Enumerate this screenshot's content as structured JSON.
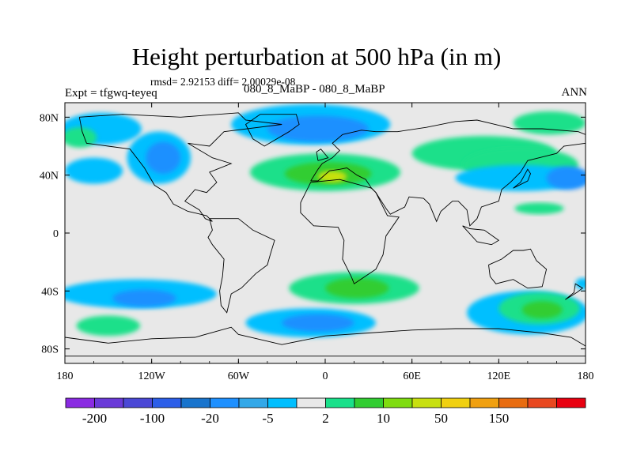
{
  "chart_data": {
    "type": "heatmap",
    "title": "Height perturbation at 500 hPa (in m)",
    "stats_text": "rmsd= 2.92153 diff= 2.00029e-08",
    "left_label": "Expt = tfgwq-teyeq",
    "center_label": "080_8_MaBP - 080_8_MaBP",
    "right_label": "ANN",
    "x_range": [
      -180,
      180
    ],
    "y_range": [
      -90,
      90
    ],
    "x_ticks": [
      {
        "value": -180,
        "label": "180"
      },
      {
        "value": -120,
        "label": "120W"
      },
      {
        "value": -60,
        "label": "60W"
      },
      {
        "value": 0,
        "label": "0"
      },
      {
        "value": 60,
        "label": "60E"
      },
      {
        "value": 120,
        "label": "120E"
      },
      {
        "value": 180,
        "label": "180"
      }
    ],
    "y_ticks": [
      {
        "value": 80,
        "label": "80N"
      },
      {
        "value": 40,
        "label": "40N"
      },
      {
        "value": 0,
        "label": "0"
      },
      {
        "value": -40,
        "label": "40S"
      },
      {
        "value": -80,
        "label": "80S"
      }
    ],
    "colorbar": {
      "colors": [
        "#8a2be2",
        "#6a3ad8",
        "#4b48d6",
        "#2c5ee8",
        "#1874cd",
        "#1e90ff",
        "#33a8e8",
        "#00bfff",
        "#e8e8e8",
        "#1ae08a",
        "#32cd32",
        "#7fdc10",
        "#c8e010",
        "#f0d010",
        "#f0a010",
        "#e86c10",
        "#e84820",
        "#e80010"
      ],
      "labels": [
        {
          "index": 1,
          "text": "-200"
        },
        {
          "index": 3,
          "text": "-100"
        },
        {
          "index": 5,
          "text": "-20"
        },
        {
          "index": 7,
          "text": "-5"
        },
        {
          "index": 9,
          "text": "2"
        },
        {
          "index": 11,
          "text": "10"
        },
        {
          "index": 13,
          "text": "50"
        },
        {
          "index": 15,
          "text": "150"
        }
      ]
    },
    "field_blobs": [
      {
        "lon": -155,
        "lat": 72,
        "rlon": 28,
        "rlat": 11,
        "color": "#00bfff"
      },
      {
        "lon": -170,
        "lat": 66,
        "rlon": 12,
        "rlat": 7,
        "color": "#1ae08a"
      },
      {
        "lon": -115,
        "lat": 52,
        "rlon": 22,
        "rlat": 18,
        "color": "#00bfff"
      },
      {
        "lon": -112,
        "lat": 52,
        "rlon": 12,
        "rlat": 11,
        "color": "#1e90ff"
      },
      {
        "lon": -160,
        "lat": 43,
        "rlon": 20,
        "rlat": 9,
        "color": "#00bfff"
      },
      {
        "lon": -10,
        "lat": 75,
        "rlon": 55,
        "rlat": 14,
        "color": "#00bfff"
      },
      {
        "lon": -5,
        "lat": 72,
        "rlon": 35,
        "rlat": 9,
        "color": "#1e90ff"
      },
      {
        "lon": 0,
        "lat": 42,
        "rlon": 52,
        "rlat": 13,
        "color": "#1ae08a"
      },
      {
        "lon": 2,
        "lat": 41,
        "rlon": 30,
        "rlat": 8,
        "color": "#32cd32"
      },
      {
        "lon": 5,
        "lat": 39,
        "rlon": 10,
        "rlat": 4,
        "color": "#c8e010"
      },
      {
        "lon": 110,
        "lat": 55,
        "rlon": 50,
        "rlat": 12,
        "color": "#1ae08a"
      },
      {
        "lon": 135,
        "lat": 47,
        "rlon": 40,
        "rlat": 12,
        "color": "#1ae08a"
      },
      {
        "lon": 155,
        "lat": 76,
        "rlon": 25,
        "rlat": 8,
        "color": "#1ae08a"
      },
      {
        "lon": 135,
        "lat": 38,
        "rlon": 45,
        "rlat": 9,
        "color": "#00bfff"
      },
      {
        "lon": 168,
        "lat": 38,
        "rlon": 15,
        "rlat": 8,
        "color": "#1e90ff"
      },
      {
        "lon": 148,
        "lat": 17,
        "rlon": 17,
        "rlat": 4,
        "color": "#1ae08a"
      },
      {
        "lon": -130,
        "lat": -42,
        "rlon": 55,
        "rlat": 10,
        "color": "#00bfff"
      },
      {
        "lon": -125,
        "lat": -45,
        "rlon": 22,
        "rlat": 6,
        "color": "#1e90ff"
      },
      {
        "lon": -150,
        "lat": -64,
        "rlon": 22,
        "rlat": 7,
        "color": "#1ae08a"
      },
      {
        "lon": 20,
        "lat": -38,
        "rlon": 45,
        "rlat": 11,
        "color": "#1ae08a"
      },
      {
        "lon": 22,
        "lat": -38,
        "rlon": 22,
        "rlat": 7,
        "color": "#32cd32"
      },
      {
        "lon": -10,
        "lat": -62,
        "rlon": 45,
        "rlat": 10,
        "color": "#00bfff"
      },
      {
        "lon": -5,
        "lat": -62,
        "rlon": 25,
        "rlat": 6,
        "color": "#1e90ff"
      },
      {
        "lon": 140,
        "lat": -55,
        "rlon": 42,
        "rlat": 15,
        "color": "#00bfff"
      },
      {
        "lon": 148,
        "lat": -52,
        "rlon": 28,
        "rlat": 11,
        "color": "#1ae08a"
      },
      {
        "lon": 150,
        "lat": -53,
        "rlon": 14,
        "rlat": 6,
        "color": "#32cd32"
      },
      {
        "lon": 178,
        "lat": -35,
        "rlon": 5,
        "rlat": 4,
        "color": "#00bfff"
      },
      {
        "lon": -100,
        "lat": -10,
        "rlon": 1,
        "rlat": 1,
        "color": "#e8e8e8"
      }
    ],
    "coastlines": [
      [
        [
          -170,
          80
        ],
        [
          -140,
          82
        ],
        [
          -100,
          80
        ],
        [
          -60,
          83
        ],
        [
          -55,
          78
        ],
        [
          -30,
          75
        ],
        [
          -70,
          70
        ],
        [
          -80,
          60
        ],
        [
          -95,
          62
        ],
        [
          -78,
          52
        ],
        [
          -65,
          48
        ],
        [
          -80,
          42
        ],
        [
          -75,
          35
        ],
        [
          -82,
          28
        ],
        [
          -90,
          30
        ],
        [
          -97,
          22
        ],
        [
          -87,
          16
        ],
        [
          -83,
          10
        ],
        [
          -78,
          8
        ],
        [
          -82,
          12
        ],
        [
          -95,
          15
        ],
        [
          -105,
          20
        ],
        [
          -110,
          28
        ],
        [
          -118,
          33
        ],
        [
          -125,
          45
        ],
        [
          -135,
          58
        ],
        [
          -150,
          60
        ],
        [
          -165,
          62
        ],
        [
          -168,
          70
        ],
        [
          -170,
          80
        ]
      ],
      [
        [
          -45,
          82
        ],
        [
          -20,
          82
        ],
        [
          -18,
          75
        ],
        [
          -25,
          70
        ],
        [
          -42,
          60
        ],
        [
          -50,
          65
        ],
        [
          -55,
          75
        ],
        [
          -45,
          82
        ]
      ],
      [
        [
          -80,
          10
        ],
        [
          -60,
          10
        ],
        [
          -50,
          2
        ],
        [
          -35,
          -5
        ],
        [
          -38,
          -15
        ],
        [
          -40,
          -22
        ],
        [
          -48,
          -28
        ],
        [
          -58,
          -38
        ],
        [
          -65,
          -42
        ],
        [
          -68,
          -55
        ],
        [
          -72,
          -50
        ],
        [
          -73,
          -40
        ],
        [
          -71,
          -30
        ],
        [
          -70,
          -18
        ],
        [
          -78,
          -8
        ],
        [
          -81,
          -3
        ],
        [
          -78,
          2
        ],
        [
          -80,
          10
        ]
      ],
      [
        [
          -10,
          36
        ],
        [
          -5,
          44
        ],
        [
          -2,
          48
        ],
        [
          5,
          52
        ],
        [
          10,
          57
        ],
        [
          5,
          62
        ],
        [
          12,
          68
        ],
        [
          25,
          71
        ],
        [
          35,
          70
        ],
        [
          50,
          70
        ],
        [
          70,
          73
        ],
        [
          90,
          77
        ],
        [
          105,
          78
        ],
        [
          130,
          72
        ],
        [
          150,
          72
        ],
        [
          175,
          70
        ],
        [
          180,
          68
        ],
        [
          180,
          62
        ],
        [
          165,
          60
        ],
        [
          160,
          55
        ],
        [
          140,
          50
        ],
        [
          135,
          42
        ],
        [
          128,
          35
        ],
        [
          122,
          30
        ],
        [
          120,
          22
        ],
        [
          108,
          18
        ],
        [
          105,
          10
        ],
        [
          100,
          5
        ],
        [
          98,
          16
        ],
        [
          92,
          22
        ],
        [
          88,
          22
        ],
        [
          80,
          15
        ],
        [
          77,
          8
        ],
        [
          72,
          20
        ],
        [
          68,
          24
        ],
        [
          58,
          25
        ],
        [
          55,
          18
        ],
        [
          45,
          13
        ],
        [
          42,
          17
        ],
        [
          35,
          28
        ],
        [
          32,
          31
        ],
        [
          28,
          37
        ],
        [
          22,
          40
        ],
        [
          15,
          45
        ],
        [
          10,
          44
        ],
        [
          3,
          43
        ],
        [
          -5,
          36
        ],
        [
          -10,
          36
        ]
      ],
      [
        [
          -17,
          21
        ],
        [
          -10,
          35
        ],
        [
          10,
          37
        ],
        [
          32,
          31
        ],
        [
          35,
          28
        ],
        [
          43,
          12
        ],
        [
          51,
          11
        ],
        [
          42,
          -2
        ],
        [
          40,
          -15
        ],
        [
          35,
          -25
        ],
        [
          20,
          -35
        ],
        [
          18,
          -30
        ],
        [
          12,
          -18
        ],
        [
          13,
          -5
        ],
        [
          9,
          4
        ],
        [
          -8,
          5
        ],
        [
          -17,
          14
        ],
        [
          -17,
          21
        ]
      ],
      [
        [
          113,
          -22
        ],
        [
          122,
          -18
        ],
        [
          130,
          -12
        ],
        [
          137,
          -12
        ],
        [
          142,
          -11
        ],
        [
          146,
          -19
        ],
        [
          153,
          -25
        ],
        [
          150,
          -37
        ],
        [
          140,
          -38
        ],
        [
          130,
          -32
        ],
        [
          118,
          -35
        ],
        [
          114,
          -30
        ],
        [
          113,
          -22
        ]
      ],
      [
        [
          -180,
          -72
        ],
        [
          -150,
          -76
        ],
        [
          -120,
          -73
        ],
        [
          -90,
          -72
        ],
        [
          -65,
          -65
        ],
        [
          -60,
          -70
        ],
        [
          -30,
          -77
        ],
        [
          0,
          -71
        ],
        [
          30,
          -69
        ],
        [
          60,
          -67
        ],
        [
          90,
          -66
        ],
        [
          120,
          -66
        ],
        [
          150,
          -69
        ],
        [
          170,
          -72
        ],
        [
          180,
          -78
        ],
        [
          180,
          -85
        ],
        [
          -180,
          -85
        ],
        [
          -180,
          -72
        ]
      ],
      [
        [
          166,
          -46
        ],
        [
          174,
          -41
        ],
        [
          178,
          -38
        ],
        [
          173,
          -35
        ],
        [
          172,
          -41
        ],
        [
          166,
          -46
        ]
      ],
      [
        [
          -5,
          50
        ],
        [
          2,
          52
        ],
        [
          -3,
          58
        ],
        [
          -6,
          56
        ],
        [
          -5,
          50
        ]
      ],
      [
        [
          130,
          31
        ],
        [
          140,
          36
        ],
        [
          142,
          41
        ],
        [
          140,
          44
        ],
        [
          135,
          35
        ],
        [
          130,
          31
        ]
      ],
      [
        [
          95,
          5
        ],
        [
          105,
          -6
        ],
        [
          115,
          -8
        ],
        [
          120,
          -5
        ],
        [
          110,
          2
        ],
        [
          100,
          3
        ],
        [
          95,
          5
        ]
      ]
    ]
  }
}
